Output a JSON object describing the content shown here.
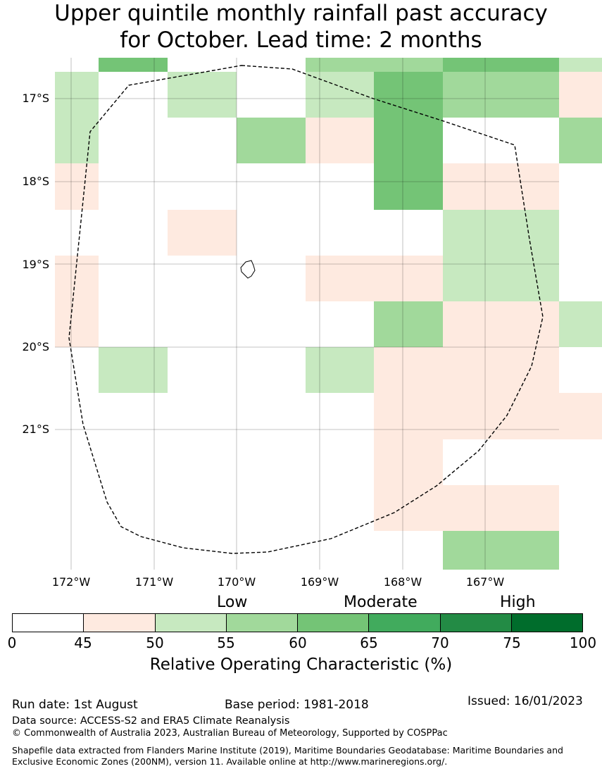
{
  "title_line1": "Upper quintile monthly rainfall past accuracy",
  "title_line2": "for October. Lead time: 2 months",
  "map": {
    "lat_labels": [
      "17°S",
      "18°S",
      "19°S",
      "20°S",
      "21°S"
    ],
    "lon_labels": [
      "172°W",
      "171°W",
      "170°W",
      "169°W",
      "168°W",
      "167°W"
    ],
    "cell_values": [
      [
        null,
        62,
        null,
        null,
        57,
        57,
        62,
        62,
        52
      ],
      [
        52,
        null,
        52,
        null,
        52,
        62,
        57,
        57,
        47
      ],
      [
        52,
        null,
        null,
        57,
        47,
        62,
        null,
        null,
        57
      ],
      [
        47,
        null,
        null,
        null,
        null,
        62,
        47,
        47,
        null
      ],
      [
        null,
        null,
        47,
        null,
        null,
        null,
        52,
        52,
        null
      ],
      [
        47,
        null,
        null,
        null,
        47,
        47,
        52,
        52,
        null
      ],
      [
        47,
        null,
        null,
        null,
        null,
        57,
        47,
        47,
        52
      ],
      [
        null,
        52,
        null,
        null,
        52,
        47,
        47,
        47,
        null
      ],
      [
        null,
        null,
        null,
        null,
        null,
        47,
        47,
        47,
        47
      ],
      [
        null,
        null,
        null,
        null,
        null,
        47,
        null,
        null,
        null
      ],
      [
        null,
        null,
        null,
        null,
        null,
        47,
        47,
        47,
        null
      ],
      [
        null,
        null,
        null,
        null,
        null,
        null,
        57,
        57,
        null
      ]
    ]
  },
  "legend": {
    "category_low": "Low",
    "category_moderate": "Moderate",
    "category_high": "High",
    "ticks": [
      "0",
      "45",
      "50",
      "55",
      "60",
      "65",
      "70",
      "75",
      "100"
    ],
    "colors": [
      "#ffffff",
      "#feeae0",
      "#c7e9c0",
      "#a1d99b",
      "#74c476",
      "#41ab5d",
      "#238b45",
      "#006d2c"
    ],
    "label": "Relative Operating Characteristic (%)"
  },
  "footer": {
    "run_date": "Run date: 1st August",
    "base_period": "Base period: 1981-2018",
    "issued": "Issued: 16/01/2023",
    "data_source": "Data source: ACCESS-S2 and ERA5 Climate Reanalysis",
    "copyright": "© Commonwealth of Australia 2023, Australian Bureau of Meteorology, Supported by COSPPac",
    "shapefile": "Shapefile data extracted from Flanders Marine Institute (2019), Maritime Boundaries Geodatabase: Maritime Boundaries and Exclusive Economic Zones (200NM), version 11. Available online at http://www.marineregions.org/."
  }
}
